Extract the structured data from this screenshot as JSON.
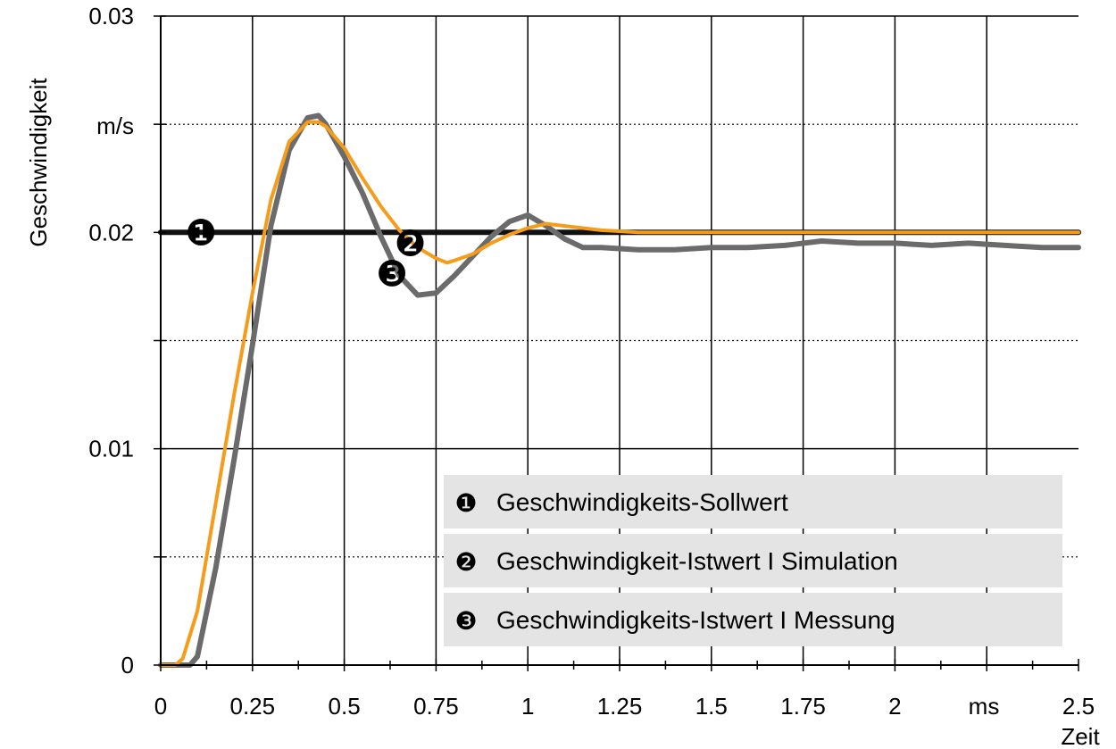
{
  "chart_data": {
    "type": "line",
    "xlabel": "Zeit",
    "ylabel": "Geschwindigkeit",
    "x_unit": "ms",
    "y_unit": "m/s",
    "xlim": [
      0,
      2.5
    ],
    "ylim": [
      0,
      0.03
    ],
    "x_ticks": [
      {
        "value": 0,
        "label": "0"
      },
      {
        "value": 0.25,
        "label": "0.25"
      },
      {
        "value": 0.5,
        "label": "0.5"
      },
      {
        "value": 0.75,
        "label": "0.75"
      },
      {
        "value": 1,
        "label": "1"
      },
      {
        "value": 1.25,
        "label": "1.25"
      },
      {
        "value": 1.5,
        "label": "1.5"
      },
      {
        "value": 1.75,
        "label": "1.75"
      },
      {
        "value": 2,
        "label": "2"
      },
      {
        "value": 2.5,
        "label": "2.5"
      }
    ],
    "y_ticks": [
      {
        "value": 0,
        "label": "0"
      },
      {
        "value": 0.01,
        "label": "0.01"
      },
      {
        "value": 0.02,
        "label": "0.02"
      },
      {
        "value": 0.03,
        "label": "0.03"
      }
    ],
    "y_minor_gridlines": [
      0.005,
      0.015,
      0.025
    ],
    "grid": true,
    "legend_position": "bottom-right",
    "legend": [
      {
        "marker": "❶",
        "label": "Geschwindigkeits-Sollwert"
      },
      {
        "marker": "❷",
        "label": "Geschwindigkeit-Istwert I Simulation"
      },
      {
        "marker": "❸",
        "label": "Geschwindigkeits-Istwert I Messung"
      }
    ],
    "series": [
      {
        "key": "1",
        "color": "#111111",
        "x": [
          0.0,
          0.1,
          0.2,
          0.3,
          0.4,
          0.5,
          0.6,
          0.7,
          0.8,
          0.9,
          1.0,
          1.1,
          1.2,
          1.3,
          1.4,
          1.5,
          1.6,
          1.7,
          1.8,
          1.9,
          2.0,
          2.1,
          2.2,
          2.3,
          2.4,
          2.5
        ],
        "values": [
          0.02,
          0.02,
          0.02,
          0.02,
          0.02,
          0.02,
          0.02,
          0.02,
          0.02,
          0.02,
          0.02,
          0.02,
          0.02,
          0.02,
          0.02,
          0.02,
          0.02,
          0.02,
          0.02,
          0.02,
          0.02,
          0.02,
          0.02,
          0.02,
          0.02,
          0.02
        ]
      },
      {
        "key": "3",
        "color": "#6b6b6b",
        "x": [
          0.0,
          0.05,
          0.08,
          0.1,
          0.15,
          0.2,
          0.25,
          0.3,
          0.35,
          0.4,
          0.43,
          0.45,
          0.5,
          0.55,
          0.6,
          0.65,
          0.7,
          0.75,
          0.8,
          0.85,
          0.9,
          0.95,
          1.0,
          1.05,
          1.1,
          1.15,
          1.2,
          1.3,
          1.4,
          1.5,
          1.6,
          1.7,
          1.8,
          1.9,
          2.0,
          2.1,
          2.2,
          2.3,
          2.4,
          2.5
        ],
        "values": [
          0.0,
          0.0,
          0.0,
          0.0004,
          0.0045,
          0.0095,
          0.0148,
          0.0203,
          0.0238,
          0.0253,
          0.0254,
          0.025,
          0.0235,
          0.0218,
          0.0198,
          0.018,
          0.0171,
          0.0172,
          0.018,
          0.0189,
          0.0198,
          0.0205,
          0.0208,
          0.0203,
          0.0197,
          0.0193,
          0.0193,
          0.0192,
          0.0192,
          0.0193,
          0.0193,
          0.0194,
          0.0196,
          0.0195,
          0.0195,
          0.0194,
          0.0195,
          0.0194,
          0.0193,
          0.0193
        ]
      },
      {
        "key": "2",
        "color": "#f59c1a",
        "x": [
          0.0,
          0.04,
          0.06,
          0.1,
          0.15,
          0.2,
          0.25,
          0.3,
          0.35,
          0.4,
          0.43,
          0.45,
          0.5,
          0.55,
          0.6,
          0.65,
          0.7,
          0.75,
          0.78,
          0.8,
          0.85,
          0.9,
          0.95,
          1.0,
          1.05,
          1.1,
          1.15,
          1.2,
          1.3,
          1.4,
          1.5,
          1.6,
          1.7,
          1.8,
          1.9,
          2.0,
          2.1,
          2.2,
          2.3,
          2.4,
          2.5
        ],
        "values": [
          0.0,
          0.0,
          0.0003,
          0.0025,
          0.0075,
          0.0125,
          0.0172,
          0.0215,
          0.0242,
          0.0251,
          0.0251,
          0.0249,
          0.0239,
          0.0225,
          0.0212,
          0.0201,
          0.0193,
          0.0188,
          0.0186,
          0.0187,
          0.019,
          0.0195,
          0.0199,
          0.0202,
          0.0204,
          0.0203,
          0.0202,
          0.0201,
          0.02,
          0.02,
          0.02,
          0.02,
          0.02,
          0.02,
          0.02,
          0.02,
          0.02,
          0.02,
          0.02,
          0.02,
          0.02
        ]
      }
    ],
    "annotations": [
      {
        "text": "❶",
        "series": "1",
        "x": 0.11,
        "y": 0.02
      },
      {
        "text": "❷",
        "series": "2",
        "x": 0.68,
        "y": 0.0195
      },
      {
        "text": "❸",
        "series": "3",
        "x": 0.63,
        "y": 0.0181
      }
    ]
  }
}
